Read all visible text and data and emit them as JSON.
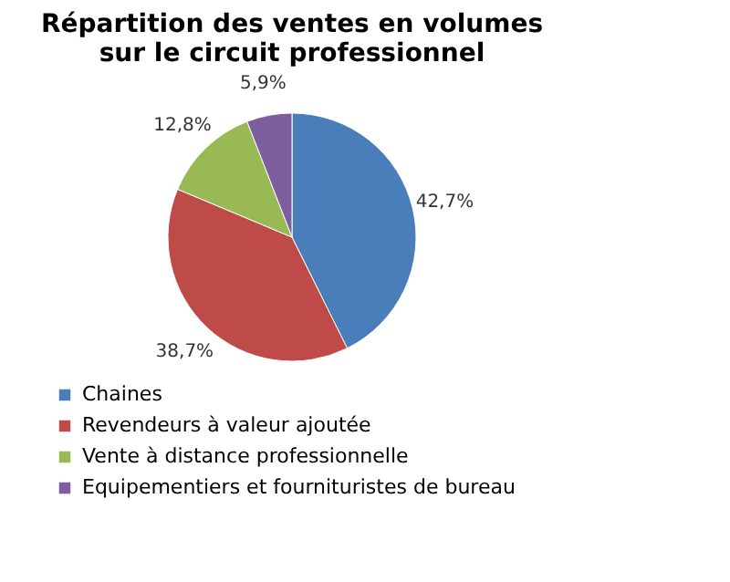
{
  "chart_data": {
    "type": "pie",
    "title": "Répartition des ventes en volumes\nsur le circuit professionnel",
    "categories": [
      "Chaines",
      "Revendeurs à valeur ajoutée",
      "Vente à distance professionnelle",
      "Equipementiers et fournituristes de bureau"
    ],
    "values": [
      42.7,
      38.7,
      12.8,
      5.9
    ],
    "colors": [
      "#4a7ebb",
      "#be4b48",
      "#98b954",
      "#7d5fa0"
    ],
    "value_labels": [
      "42,7%",
      "38,7%",
      "12,8%",
      "5,9%"
    ],
    "legend": "bottom left"
  }
}
